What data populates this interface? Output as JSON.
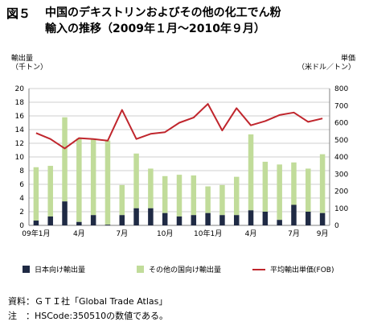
{
  "figure_label": "図５",
  "title_line1": "中国のデキストリンおよびその他の化工でん粉",
  "title_line2": "輸入の推移（2009年１月～2010年９月）",
  "left_unit_line1": "輸出量",
  "left_unit_line2": "（千トン）",
  "right_unit_line1": "単価",
  "right_unit_line2": "（米ドル／トン）",
  "note_source": "資料：ＧＴＩ社「Global Trade Atlas」",
  "note_code": "注　：HSCode:350510の数値である。",
  "colors": {
    "japan": "#1f2a44",
    "other": "#c1dc9a",
    "price": "#c0262d",
    "grid": "#bfbfbf"
  },
  "chart_data": {
    "type": "bar+line",
    "x": [
      "09年1月",
      "2月",
      "3月",
      "4月",
      "5月",
      "6月",
      "7月",
      "8月",
      "9月",
      "10月",
      "11月",
      "12月",
      "10年1月",
      "2月",
      "3月",
      "4月",
      "5月",
      "6月",
      "7月",
      "8月",
      "9月"
    ],
    "x_tick_labels": [
      "09年1月",
      "",
      "",
      "4月",
      "",
      "",
      "7月",
      "",
      "",
      "10月",
      "",
      "",
      "10年1月",
      "",
      "",
      "4月",
      "",
      "",
      "7月",
      "",
      "9月"
    ],
    "series": [
      {
        "name": "日本向け輸出量",
        "type": "stacked_bar",
        "axis": "left",
        "values": [
          0.7,
          1.3,
          3.5,
          0.5,
          1.5,
          0.1,
          1.5,
          2.5,
          2.5,
          1.8,
          1.3,
          1.5,
          1.8,
          1.5,
          1.5,
          2.2,
          2.0,
          0.8,
          3.0,
          2.0,
          1.8
        ]
      },
      {
        "name": "その他の国向け輸出量",
        "type": "stacked_bar",
        "axis": "left",
        "values": [
          7.8,
          7.4,
          12.3,
          12.2,
          11.2,
          12.3,
          4.4,
          8.0,
          5.8,
          5.4,
          6.1,
          5.8,
          3.9,
          4.4,
          5.6,
          11.1,
          7.3,
          8.1,
          6.2,
          6.3,
          8.6
        ]
      },
      {
        "name": "平均輸出単価(FOB)",
        "type": "line",
        "axis": "right",
        "values": [
          540,
          505,
          450,
          510,
          505,
          495,
          675,
          505,
          535,
          545,
          600,
          630,
          710,
          555,
          685,
          585,
          610,
          645,
          660,
          605,
          625
        ]
      }
    ],
    "left_axis": {
      "min": 0,
      "max": 20,
      "step": 2
    },
    "right_axis": {
      "min": 0,
      "max": 800,
      "step": 100
    },
    "grid": true,
    "legend_position": "bottom"
  }
}
